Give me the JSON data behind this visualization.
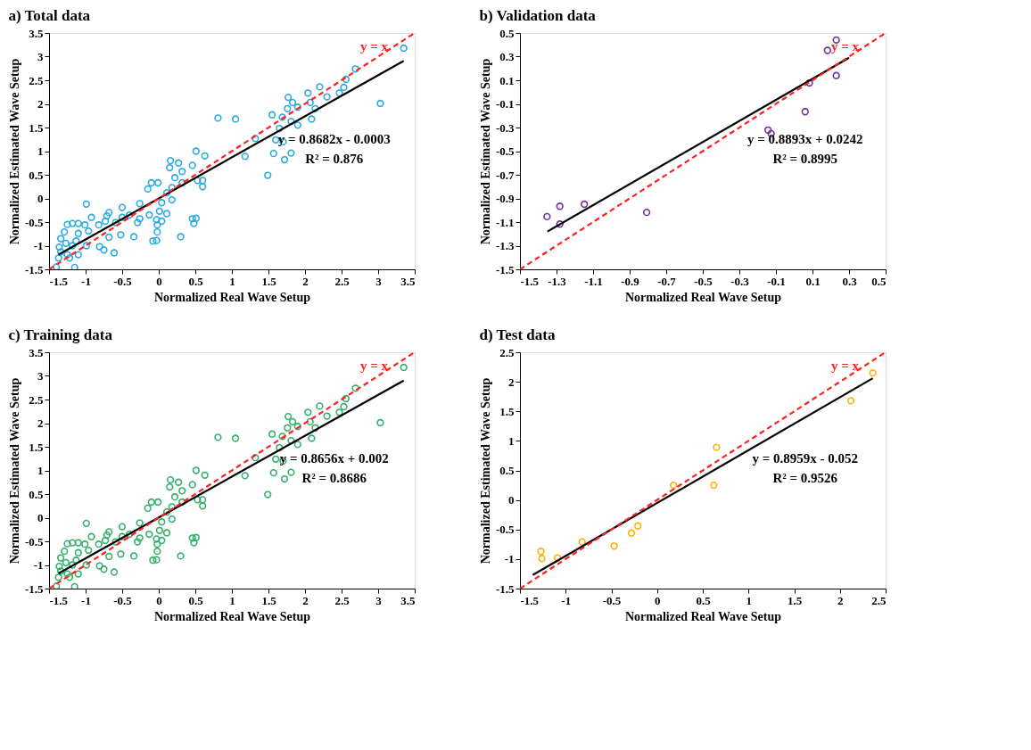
{
  "chart_data": [
    {
      "type": "scatter",
      "title": "a) Total data",
      "xlabel": "Normalized Real Wave Setup",
      "ylabel": "Normalized Estimated Wave Setup",
      "xlim": [
        -1.5,
        3.5
      ],
      "ylim": [
        -1.5,
        3.5
      ],
      "xticks": [
        -1.5,
        -1,
        -0.5,
        0,
        0.5,
        1,
        1.5,
        2,
        2.5,
        3,
        3.5
      ],
      "yticks": [
        -1.5,
        -1,
        -0.5,
        0,
        0.5,
        1,
        1.5,
        2,
        2.5,
        3,
        3.5
      ],
      "grid": false,
      "marker": "circle",
      "series": [
        {
          "color": "#29abe2",
          "x": [
            3.35,
            3.03,
            2.69,
            2.56,
            2.53,
            2.47,
            2.2,
            2.04,
            2.3,
            2.07,
            2.14,
            1.77,
            1.83,
            1.76,
            1.9,
            1.55,
            2.09,
            1.81,
            1.9,
            1.69,
            1.65,
            1.6,
            1.7,
            1.57,
            1.81,
            1.72,
            1.49,
            1.32,
            1.18,
            0.81,
            1.05,
            0.51,
            0.63,
            0.6,
            0.6,
            0.53,
            0.46,
            0.32,
            0.27,
            0.16,
            0.15,
            0.22,
            0.18,
            0.11,
            0.18,
            0.32,
            -0.1,
            -0.01,
            -0.15,
            -0.26,
            0.04,
            0.01,
            0.11,
            -0.03,
            -0.02,
            0.04,
            -0.02,
            -0.08,
            -0.03,
            0.3,
            0.46,
            0.48,
            0.51,
            -0.13,
            -0.26,
            -0.29,
            -0.34,
            -0.4,
            -0.5,
            -0.5,
            -0.59,
            -0.52,
            -0.68,
            -0.71,
            -0.73,
            -0.68,
            -0.82,
            -0.92,
            -0.99,
            -0.96,
            -0.81,
            -0.75,
            -0.61,
            -1.01,
            -1.1,
            -1.18,
            -1.25,
            -1.29,
            -1.34,
            -1.1,
            -1.13,
            -1.27,
            -1.36,
            -1.34,
            -1.37,
            -1.25,
            -1.1,
            -1.22,
            -1.4,
            -1.15,
            -0.99,
            -1.18
          ],
          "values": [
            3.18,
            2.01,
            2.74,
            2.52,
            2.35,
            2.23,
            2.36,
            2.23,
            2.15,
            2.03,
            1.9,
            2.14,
            2.03,
            1.9,
            1.93,
            1.77,
            1.68,
            1.63,
            1.55,
            1.72,
            1.48,
            1.24,
            1.2,
            0.95,
            0.96,
            0.82,
            0.49,
            1.27,
            0.89,
            1.7,
            1.68,
            1.0,
            0.9,
            0.38,
            0.25,
            0.38,
            0.7,
            0.57,
            0.75,
            0.8,
            0.65,
            0.44,
            0.23,
            0.12,
            -0.03,
            0.33,
            0.33,
            0.33,
            0.2,
            -0.11,
            -0.09,
            -0.27,
            -0.32,
            -0.45,
            -0.56,
            -0.48,
            -0.71,
            -0.9,
            -0.89,
            -0.81,
            -0.43,
            -0.53,
            -0.42,
            -0.35,
            -0.43,
            -0.51,
            -0.81,
            -0.35,
            -0.19,
            -0.4,
            -0.51,
            -0.77,
            -0.3,
            -0.37,
            -0.48,
            -0.82,
            -0.56,
            -0.4,
            -0.12,
            -0.69,
            -1.02,
            -1.09,
            -1.15,
            -0.56,
            -0.53,
            -0.53,
            -0.55,
            -0.71,
            -0.85,
            -0.74,
            -0.9,
            -0.95,
            -1.03,
            -1.13,
            -1.26,
            -1.19,
            -1.19,
            -1.26,
            -1.45,
            -1.46,
            -1.0,
            -1.0
          ]
        },
        {
          "type": "line",
          "marker": "none",
          "color": "#000000",
          "x": [
            -1.37,
            3.35
          ],
          "values": [
            -1.19,
            2.91
          ]
        },
        {
          "type": "line",
          "marker": "none",
          "name": "y = x",
          "color": "#ff2020",
          "line_style": "dashed",
          "x": [
            -1.5,
            3.5
          ],
          "values": [
            -1.5,
            3.5
          ]
        }
      ],
      "annotations": [
        "y = 0.8682x - 0.0003",
        "R² = 0.876"
      ]
    },
    {
      "type": "scatter",
      "title": "b) Validation data",
      "xlabel": "Normalized Real Wave Setup",
      "ylabel": "Normalized Estimated Wave Setup",
      "xlim": [
        -1.5,
        0.5
      ],
      "ylim": [
        -1.5,
        0.5
      ],
      "xticks": [
        -1.5,
        -1.3,
        -1.1,
        -0.9,
        -0.7,
        -0.5,
        -0.3,
        -0.1,
        0.1,
        0.3,
        0.5
      ],
      "yticks": [
        -1.5,
        -1.3,
        -1.1,
        -0.9,
        -0.7,
        -0.5,
        -0.3,
        -0.1,
        0.1,
        0.3,
        0.5
      ],
      "grid": false,
      "marker": "circle",
      "series": [
        {
          "color": "#7030a0",
          "x": [
            -1.352,
            -1.282,
            -1.282,
            -1.148,
            -0.807,
            -0.143,
            -0.126,
            0.06,
            0.083,
            0.182,
            0.23,
            0.23
          ],
          "values": [
            -1.054,
            -0.966,
            -1.117,
            -0.949,
            -1.018,
            -0.321,
            -0.352,
            -0.166,
            0.077,
            0.353,
            0.441,
            0.14
          ]
        },
        {
          "type": "line",
          "marker": "none",
          "color": "#000000",
          "x": [
            -1.35,
            0.3
          ],
          "values": [
            -1.18,
            0.29
          ]
        },
        {
          "type": "line",
          "marker": "none",
          "name": "y = x",
          "color": "#ff2020",
          "line_style": "dashed",
          "x": [
            -1.5,
            0.5
          ],
          "values": [
            -1.5,
            0.5
          ]
        }
      ],
      "annotations": [
        "y = 0.8893x + 0.0242",
        "R² = 0.8995"
      ]
    },
    {
      "type": "scatter",
      "title": "c) Training data",
      "xlabel": "Normalized Real Wave Setup",
      "ylabel": "Normalized Estimated Wave Setup",
      "xlim": [
        -1.5,
        3.5
      ],
      "ylim": [
        -1.5,
        3.5
      ],
      "xticks": [
        -1.5,
        -1,
        -0.5,
        0,
        0.5,
        1,
        1.5,
        2,
        2.5,
        3,
        3.5
      ],
      "yticks": [
        -1.5,
        -1,
        -0.5,
        0,
        0.5,
        1,
        1.5,
        2,
        2.5,
        3,
        3.5
      ],
      "grid": false,
      "marker": "circle",
      "series": [
        {
          "color": "#33b06a",
          "x": [
            3.35,
            3.03,
            2.69,
            2.56,
            2.53,
            2.47,
            2.2,
            2.04,
            2.3,
            2.07,
            2.14,
            1.77,
            1.83,
            1.76,
            1.9,
            1.55,
            2.09,
            1.81,
            1.9,
            1.69,
            1.65,
            1.6,
            1.7,
            1.57,
            1.81,
            1.72,
            1.49,
            1.32,
            1.18,
            0.81,
            1.05,
            0.51,
            0.63,
            0.6,
            0.6,
            0.53,
            0.46,
            0.32,
            0.27,
            0.16,
            0.15,
            0.22,
            0.18,
            0.11,
            0.18,
            0.32,
            -0.1,
            -0.01,
            -0.15,
            -0.26,
            0.04,
            0.01,
            0.11,
            -0.03,
            -0.02,
            0.04,
            -0.02,
            -0.08,
            -0.03,
            0.3,
            0.46,
            0.48,
            0.51,
            -0.13,
            -0.26,
            -0.29,
            -0.34,
            -0.4,
            -0.5,
            -0.5,
            -0.59,
            -0.52,
            -0.68,
            -0.71,
            -0.73,
            -0.68,
            -0.82,
            -0.92,
            -0.99,
            -0.96,
            -0.81,
            -0.75,
            -0.61,
            -1.01,
            -1.1,
            -1.18,
            -1.25,
            -1.29,
            -1.34,
            -1.1,
            -1.13,
            -1.27,
            -1.36,
            -1.34,
            -1.37,
            -1.25,
            -1.1,
            -1.22,
            -1.4,
            -1.15,
            -0.99,
            -1.18
          ],
          "values": [
            3.18,
            2.01,
            2.74,
            2.52,
            2.35,
            2.23,
            2.36,
            2.23,
            2.15,
            2.03,
            1.9,
            2.14,
            2.03,
            1.9,
            1.93,
            1.77,
            1.68,
            1.63,
            1.55,
            1.72,
            1.48,
            1.24,
            1.2,
            0.95,
            0.96,
            0.82,
            0.49,
            1.27,
            0.89,
            1.7,
            1.68,
            1.0,
            0.9,
            0.38,
            0.25,
            0.38,
            0.7,
            0.57,
            0.75,
            0.8,
            0.65,
            0.44,
            0.23,
            0.12,
            -0.03,
            0.33,
            0.33,
            0.33,
            0.2,
            -0.11,
            -0.09,
            -0.27,
            -0.32,
            -0.45,
            -0.56,
            -0.48,
            -0.71,
            -0.9,
            -0.89,
            -0.81,
            -0.43,
            -0.53,
            -0.42,
            -0.35,
            -0.43,
            -0.51,
            -0.81,
            -0.35,
            -0.19,
            -0.4,
            -0.51,
            -0.77,
            -0.3,
            -0.37,
            -0.48,
            -0.82,
            -0.56,
            -0.4,
            -0.12,
            -0.69,
            -1.02,
            -1.09,
            -1.15,
            -0.56,
            -0.53,
            -0.53,
            -0.55,
            -0.71,
            -0.85,
            -0.74,
            -0.9,
            -0.95,
            -1.03,
            -1.13,
            -1.26,
            -1.19,
            -1.19,
            -1.26,
            -1.45,
            -1.46,
            -1.0,
            -1.0
          ]
        },
        {
          "type": "line",
          "marker": "none",
          "color": "#000000",
          "x": [
            -1.37,
            3.35
          ],
          "values": [
            -1.18,
            2.9
          ]
        },
        {
          "type": "line",
          "marker": "none",
          "name": "y = x",
          "color": "#ff2020",
          "line_style": "dashed",
          "x": [
            -1.5,
            3.5
          ],
          "values": [
            -1.5,
            3.5
          ]
        }
      ],
      "annotations": [
        "y = 0.8656x + 0.002",
        "R² = 0.8686"
      ]
    },
    {
      "type": "scatter",
      "title": "d) Test data",
      "xlabel": "Normalized Real Wave Setup",
      "ylabel": "Normalized Estimated Wave Setup",
      "xlim": [
        -1.5,
        2.5
      ],
      "ylim": [
        -1.5,
        2.5
      ],
      "xticks": [
        -1.5,
        -1,
        -0.5,
        0,
        0.5,
        1,
        1.5,
        2,
        2.5
      ],
      "yticks": [
        -1.5,
        -1,
        -0.5,
        0,
        0.5,
        1,
        1.5,
        2,
        2.5
      ],
      "grid": false,
      "marker": "circle",
      "series": [
        {
          "color": "#ffb000",
          "x": [
            2.36,
            2.12,
            0.65,
            0.62,
            0.18,
            -0.21,
            -0.28,
            -0.47,
            -0.82,
            -1.09,
            -1.27,
            -1.26
          ],
          "values": [
            2.15,
            1.68,
            0.89,
            0.25,
            0.25,
            -0.44,
            -0.56,
            -0.78,
            -0.71,
            -0.98,
            -0.87,
            -0.99
          ]
        },
        {
          "type": "line",
          "marker": "none",
          "color": "#000000",
          "x": [
            -1.36,
            2.36
          ],
          "values": [
            -1.27,
            2.06
          ]
        },
        {
          "type": "line",
          "marker": "none",
          "name": "y = x",
          "color": "#ff2020",
          "line_style": "dashed",
          "x": [
            -1.5,
            2.5
          ],
          "values": [
            -1.5,
            2.5
          ]
        }
      ],
      "annotations": [
        "y = 0.8959x - 0.052",
        "R² = 0.9526"
      ]
    }
  ]
}
